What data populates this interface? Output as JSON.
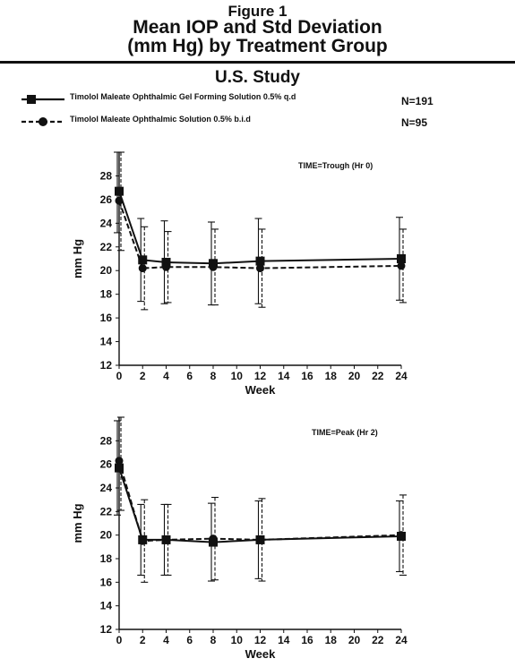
{
  "figure": {
    "line1": "Figure 1",
    "line2": "Mean IOP and Std Deviation",
    "line3": "(mm Hg) by Treatment Group",
    "study": "U.S. Study"
  },
  "legend": [
    {
      "label": "Timolol Maleate Ophthalmic Gel Forming Solution 0.5% q.d",
      "n": "N=191",
      "style": "solid",
      "marker": "square"
    },
    {
      "label": "Timolol Maleate Ophthalmic Solution 0.5% b.i.d",
      "n": "N=95",
      "style": "dashed",
      "marker": "circle"
    }
  ],
  "chart_data": [
    {
      "type": "line",
      "annotation": "TIME=Trough (Hr 0)",
      "xlabel": "Week",
      "ylabel": "mm Hg",
      "xlim": [
        0,
        24
      ],
      "ylim": [
        12,
        30
      ],
      "xticks": [
        0,
        2,
        4,
        6,
        8,
        10,
        12,
        14,
        16,
        18,
        20,
        22,
        24
      ],
      "yticks": [
        12,
        14,
        16,
        18,
        20,
        22,
        24,
        26,
        28
      ],
      "grid": false,
      "x": [
        0,
        2,
        4,
        8,
        12,
        24
      ],
      "series": [
        {
          "values": [
            26.7,
            20.9,
            20.7,
            20.6,
            20.8,
            21.0
          ],
          "sd": [
            3.5,
            3.5,
            3.5,
            3.5,
            3.6,
            3.5
          ]
        },
        {
          "values": [
            25.9,
            20.2,
            20.3,
            20.3,
            20.2,
            20.4
          ],
          "sd": [
            4.2,
            3.5,
            3.0,
            3.2,
            3.3,
            3.1
          ]
        }
      ]
    },
    {
      "type": "line",
      "annotation": "TIME=Peak (Hr 2)",
      "xlabel": "Week",
      "ylabel": "mm Hg",
      "xlim": [
        0,
        24
      ],
      "ylim": [
        12,
        30
      ],
      "xticks": [
        0,
        2,
        4,
        6,
        8,
        10,
        12,
        14,
        16,
        18,
        20,
        22,
        24
      ],
      "yticks": [
        12,
        14,
        16,
        18,
        20,
        22,
        24,
        26,
        28
      ],
      "grid": false,
      "x": [
        0,
        2,
        4,
        8,
        12,
        24
      ],
      "series": [
        {
          "values": [
            25.7,
            19.6,
            19.6,
            19.4,
            19.6,
            19.9
          ],
          "sd": [
            4.0,
            3.0,
            3.0,
            3.3,
            3.3,
            3.0
          ]
        },
        {
          "values": [
            26.3,
            19.5,
            19.6,
            19.7,
            19.6,
            20.0
          ],
          "sd": [
            4.2,
            3.5,
            3.0,
            3.5,
            3.5,
            3.4
          ]
        }
      ]
    }
  ]
}
